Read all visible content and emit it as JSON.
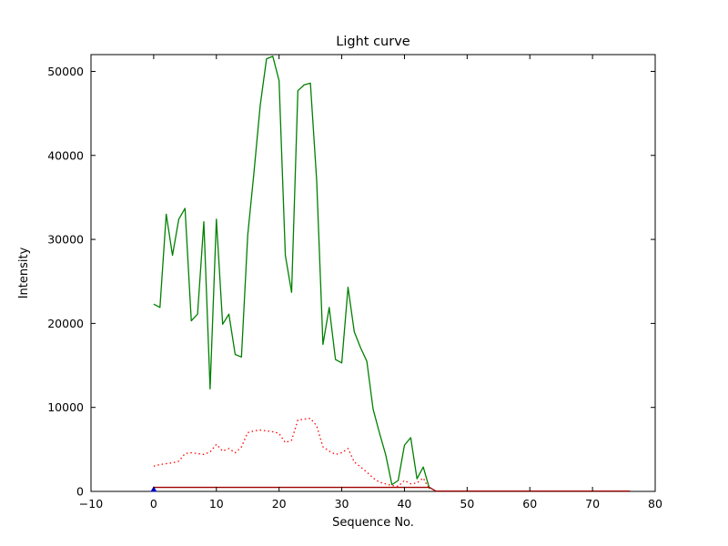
{
  "chart_data": {
    "type": "line",
    "title": "Light curve",
    "xlabel": "Sequence No.",
    "ylabel": "Intensity",
    "xlim": [
      -10,
      80
    ],
    "ylim": [
      0,
      52000
    ],
    "xticks": [
      -10,
      0,
      10,
      20,
      30,
      40,
      50,
      60,
      70,
      80
    ],
    "yticks": [
      0,
      10000,
      20000,
      30000,
      40000,
      50000
    ],
    "grid": false,
    "legend": "none",
    "series": [
      {
        "name": "green-solid-curve",
        "color": "#008000",
        "style": "solid",
        "x": [
          0,
          1,
          2,
          3,
          4,
          5,
          6,
          7,
          8,
          9,
          10,
          11,
          12,
          13,
          14,
          15,
          16,
          17,
          18,
          19,
          20,
          21,
          22,
          23,
          24,
          25,
          26,
          27,
          28,
          29,
          30,
          31,
          32,
          33,
          34,
          35,
          36,
          37,
          38,
          39,
          40,
          41,
          42,
          43,
          44
        ],
        "y": [
          22300,
          21900,
          33000,
          28100,
          32400,
          33700,
          20300,
          21100,
          32100,
          12200,
          32400,
          19900,
          21100,
          16300,
          16000,
          30500,
          38000,
          46000,
          51500,
          51800,
          48900,
          28100,
          23700,
          47700,
          48400,
          48600,
          37000,
          17500,
          21900,
          15700,
          15300,
          24300,
          19000,
          17100,
          15500,
          9800,
          7000,
          4400,
          800,
          1300,
          5500,
          6400,
          1500,
          2900,
          300
        ]
      },
      {
        "name": "red-dotted-curve",
        "color": "#ff0000",
        "style": "dotted",
        "x": [
          0,
          1,
          2,
          3,
          4,
          5,
          6,
          7,
          8,
          9,
          10,
          11,
          12,
          13,
          14,
          15,
          16,
          17,
          18,
          19,
          20,
          21,
          22,
          23,
          24,
          25,
          26,
          27,
          28,
          29,
          30,
          31,
          32,
          33,
          34,
          35,
          36,
          37,
          38,
          39,
          40,
          41,
          42,
          43,
          44
        ],
        "y": [
          3000,
          3200,
          3300,
          3400,
          3600,
          4500,
          4600,
          4500,
          4400,
          4700,
          5600,
          4800,
          5100,
          4600,
          5300,
          7000,
          7200,
          7300,
          7200,
          7100,
          6900,
          5800,
          6100,
          8500,
          8600,
          8700,
          7800,
          5300,
          4800,
          4400,
          4600,
          5100,
          3500,
          2900,
          2300,
          1600,
          1100,
          900,
          700,
          600,
          1300,
          900,
          1000,
          1600,
          200
        ]
      },
      {
        "name": "red-solid-baseline",
        "color": "#a00000",
        "style": "solid",
        "x": [
          0,
          44,
          45,
          76
        ],
        "y": [
          480,
          480,
          40,
          40
        ]
      },
      {
        "name": "blue-start-marker",
        "color": "#0000ff",
        "style": "marker",
        "x": [
          0
        ],
        "y": [
          250
        ]
      }
    ]
  }
}
